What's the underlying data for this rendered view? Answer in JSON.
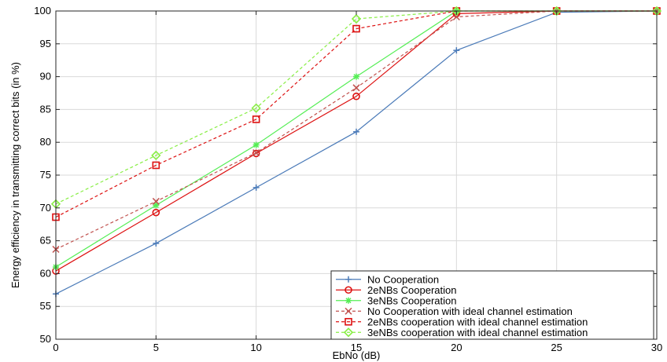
{
  "chart_data": {
    "type": "line",
    "xlabel": "EbNo (dB)",
    "ylabel": "Energy efficiency in transmitting correct bits (in %)",
    "xlim": [
      0,
      30
    ],
    "ylim": [
      50,
      100
    ],
    "xticks": [
      "0",
      "5",
      "10",
      "15",
      "20",
      "25",
      "30"
    ],
    "yticks": [
      "50",
      "55",
      "60",
      "65",
      "70",
      "75",
      "80",
      "85",
      "90",
      "95",
      "100"
    ],
    "grid": true,
    "legend_position": "bottom-right",
    "x": [
      0,
      5,
      10,
      15,
      20,
      25,
      30
    ],
    "series": [
      {
        "name": "No Cooperation",
        "values": [
          56.9,
          64.6,
          73.1,
          81.6,
          94.0,
          99.8,
          100
        ],
        "color": "#4a7ab8",
        "dash": "solid",
        "marker": "plus"
      },
      {
        "name": "2eNBs Cooperation",
        "values": [
          60.4,
          69.3,
          78.3,
          87.0,
          99.6,
          100,
          100
        ],
        "color": "#dd1111",
        "dash": "solid",
        "marker": "circle"
      },
      {
        "name": "3eNBs Cooperation",
        "values": [
          61.0,
          70.4,
          79.6,
          90.0,
          100,
          100,
          100
        ],
        "color": "#55ee55",
        "dash": "solid",
        "marker": "star"
      },
      {
        "name": "No Cooperation with ideal channel estimation",
        "values": [
          63.7,
          71.0,
          78.4,
          88.3,
          99.1,
          100,
          100
        ],
        "color": "#c0504d",
        "dash": "dashed",
        "marker": "x"
      },
      {
        "name": "2eNBs cooperation with ideal channel estimation",
        "values": [
          68.6,
          76.5,
          83.5,
          97.3,
          100,
          100,
          100
        ],
        "color": "#dd1111",
        "dash": "dashed",
        "marker": "square"
      },
      {
        "name": "3eNBs cooperation with ideal channel estimation",
        "values": [
          70.6,
          78.0,
          85.2,
          98.8,
          100,
          100,
          100
        ],
        "color": "#88ee44",
        "dash": "dashed",
        "marker": "diamond"
      }
    ]
  }
}
